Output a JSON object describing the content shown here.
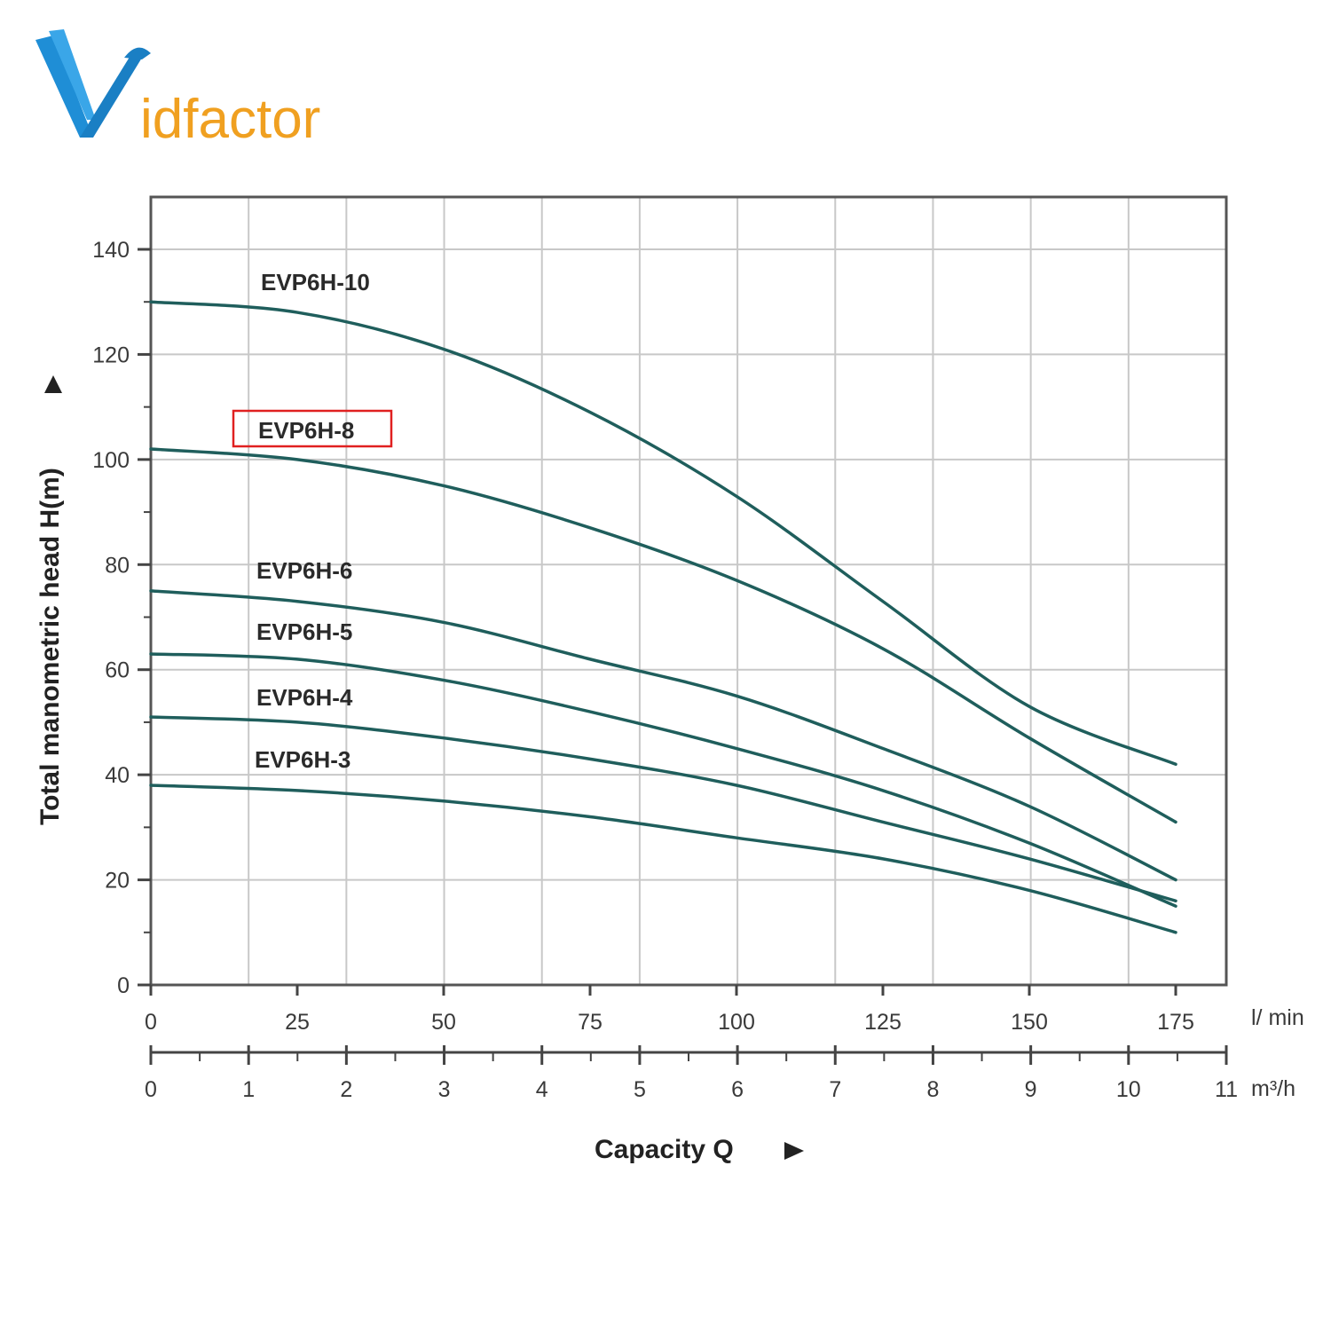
{
  "logo": {
    "text_v": "V",
    "text_rest": "idfactor",
    "color_blue": "#1f8ed6",
    "color_orange": "#f0a020"
  },
  "chart_data": {
    "type": "line",
    "title": "",
    "xlabel": "Capacity Q",
    "ylabel": "Total manometric head H(m)",
    "x_unit_primary": "l/ min",
    "x_unit_secondary": "m³/h",
    "xlim_lmin": [
      0,
      175
    ],
    "ylim": [
      0,
      140
    ],
    "x_ticks_lmin": [
      0,
      25,
      50,
      75,
      100,
      125,
      150,
      175
    ],
    "x_ticks_m3h": [
      0,
      1,
      2,
      3,
      4,
      5,
      6,
      7,
      8,
      9,
      10,
      11
    ],
    "y_ticks": [
      0,
      20,
      40,
      60,
      80,
      100,
      120,
      140
    ],
    "grid": true,
    "highlighted_series": "EVP6H-8",
    "highlight_color": "#e02020",
    "curve_color": "#1f5e5c",
    "series": [
      {
        "name": "EVP6H-10",
        "x": [
          0,
          25,
          50,
          75,
          100,
          125,
          150,
          175
        ],
        "y": [
          130,
          128,
          121,
          109,
          93,
          73,
          53,
          42
        ]
      },
      {
        "name": "EVP6H-8",
        "x": [
          0,
          25,
          50,
          75,
          100,
          125,
          150,
          175
        ],
        "y": [
          102,
          100,
          95,
          87,
          77,
          64,
          47,
          31
        ]
      },
      {
        "name": "EVP6H-6",
        "x": [
          0,
          25,
          50,
          75,
          100,
          125,
          150,
          175
        ],
        "y": [
          75,
          73,
          69,
          62,
          55,
          45,
          34,
          20
        ]
      },
      {
        "name": "EVP6H-5",
        "x": [
          0,
          25,
          50,
          75,
          100,
          125,
          150,
          175
        ],
        "y": [
          63,
          62,
          58,
          52,
          45,
          37,
          27,
          15
        ]
      },
      {
        "name": "EVP6H-4",
        "x": [
          0,
          25,
          50,
          75,
          100,
          125,
          150,
          175
        ],
        "y": [
          51,
          50,
          47,
          43,
          38,
          31,
          24,
          16
        ]
      },
      {
        "name": "EVP6H-3",
        "x": [
          0,
          25,
          50,
          75,
          100,
          125,
          150,
          175
        ],
        "y": [
          38,
          37,
          35,
          32,
          28,
          24,
          18,
          10
        ]
      }
    ]
  }
}
